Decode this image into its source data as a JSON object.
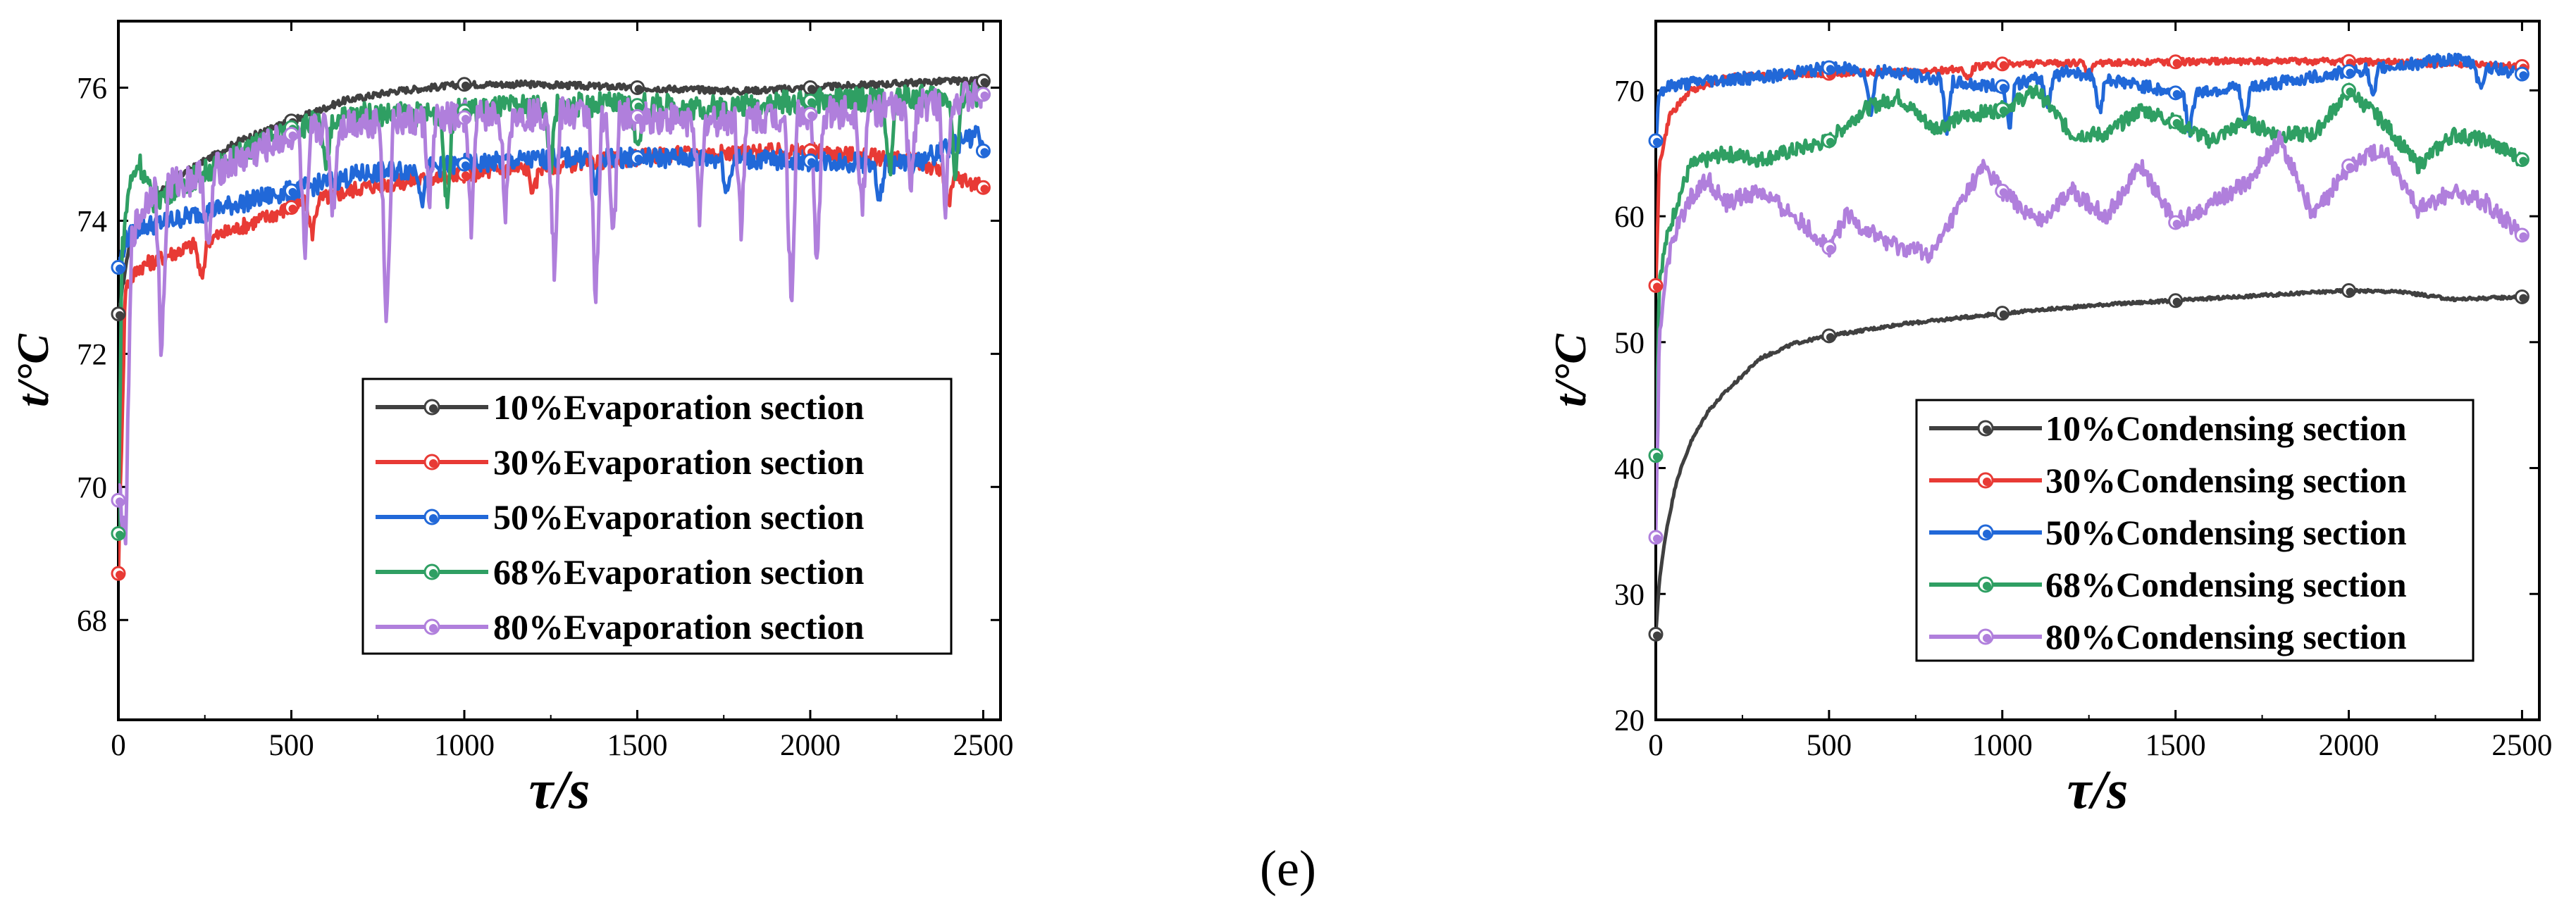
{
  "figure": {
    "caption": "(e)"
  },
  "chart_data": [
    {
      "type": "line",
      "title": "",
      "xlabel": "τ/s",
      "ylabel": "t/°C",
      "xlim": [
        0,
        2550
      ],
      "ylim": [
        66.5,
        77
      ],
      "xticks": [
        0,
        500,
        1000,
        1500,
        2000,
        2500
      ],
      "yticks": [
        68,
        70,
        72,
        74,
        76
      ],
      "legend_position": "lower-right",
      "series": [
        {
          "name": "10%Evaporation section",
          "color": "#404040",
          "x": [
            0,
            30,
            80,
            150,
            250,
            350,
            500,
            650,
            800,
            1000,
            1200,
            1500,
            1800,
            2000,
            2200,
            2400,
            2500
          ],
          "y": [
            72.6,
            73.6,
            74.2,
            74.6,
            74.9,
            75.2,
            75.5,
            75.8,
            75.95,
            76.05,
            76.05,
            76.0,
            75.95,
            76.0,
            76.05,
            76.1,
            76.1
          ],
          "noise": 0.05,
          "spikes": []
        },
        {
          "name": "30%Evaporation section",
          "color": "#e83a35",
          "x": [
            0,
            20,
            60,
            150,
            300,
            500,
            700,
            1000,
            1300,
            1600,
            2000,
            2300,
            2500
          ],
          "y": [
            68.7,
            73.0,
            73.3,
            73.5,
            73.8,
            74.2,
            74.5,
            74.7,
            74.85,
            75.0,
            75.05,
            74.9,
            74.5
          ],
          "noise": 0.12,
          "spikes": [
            [
              240,
              -0.6
            ],
            [
              560,
              -0.5
            ],
            [
              1200,
              -0.4
            ],
            [
              2400,
              -0.5
            ]
          ]
        },
        {
          "name": "50%Evaporation section",
          "color": "#2168d8",
          "x": [
            0,
            20,
            60,
            150,
            300,
            500,
            700,
            1000,
            1300,
            1600,
            2000,
            2300,
            2480,
            2500
          ],
          "y": [
            73.3,
            73.7,
            73.9,
            74.0,
            74.2,
            74.45,
            74.7,
            74.85,
            74.95,
            74.95,
            74.9,
            74.85,
            75.3,
            75.05
          ],
          "noise": 0.15,
          "spikes": [
            [
              880,
              -0.5
            ],
            [
              1380,
              -0.5
            ],
            [
              1760,
              -0.5
            ],
            [
              2200,
              -0.6
            ]
          ]
        },
        {
          "name": "68%Evaporation section",
          "color": "#2f9f63",
          "x": [
            0,
            10,
            30,
            60,
            100,
            200,
            350,
            500,
            700,
            900,
            1100,
            1400,
            1700,
            2000,
            2300,
            2500
          ],
          "y": [
            69.3,
            73.5,
            74.5,
            74.9,
            74.3,
            74.6,
            75.0,
            75.4,
            75.6,
            75.6,
            75.7,
            75.75,
            75.7,
            75.8,
            75.85,
            75.9
          ],
          "noise": 0.18,
          "spikes": [
            [
              600,
              -0.8
            ],
            [
              950,
              -1.5
            ],
            [
              1250,
              -0.9
            ],
            [
              1500,
              -0.7
            ],
            [
              2230,
              -1.2
            ],
            [
              2420,
              -1.3
            ]
          ]
        },
        {
          "name": "80%Evaporation section",
          "color": "#b07fdc",
          "x": [
            0,
            10,
            40,
            100,
            200,
            350,
            500,
            700,
            900,
            1100,
            1400,
            1700,
            2000,
            2300,
            2500
          ],
          "y": [
            69.8,
            71.0,
            73.8,
            74.5,
            74.6,
            74.9,
            75.3,
            75.5,
            75.5,
            75.6,
            75.6,
            75.5,
            75.6,
            75.7,
            75.9
          ],
          "noise": 0.25,
          "spikes": [
            [
              20,
              -3.0
            ],
            [
              125,
              -2.6
            ],
            [
              260,
              -1.3
            ],
            [
              540,
              -2.0
            ],
            [
              620,
              -1.3
            ],
            [
              775,
              -3.2
            ],
            [
              900,
              -1.2
            ],
            [
              1020,
              -1.6
            ],
            [
              1120,
              -1.5
            ],
            [
              1260,
              -2.4
            ],
            [
              1380,
              -3.0
            ],
            [
              1430,
              -2.0
            ],
            [
              1680,
              -1.5
            ],
            [
              1800,
              -1.6
            ],
            [
              1945,
              -2.9
            ],
            [
              2020,
              -2.4
            ],
            [
              2150,
              -1.5
            ],
            [
              2290,
              -1.2
            ],
            [
              2390,
              -1.6
            ]
          ]
        }
      ]
    },
    {
      "type": "line",
      "title": "",
      "xlabel": "τ/s",
      "ylabel": "t/°C",
      "xlim": [
        0,
        2550
      ],
      "ylim": [
        20,
        75.5
      ],
      "xticks": [
        0,
        500,
        1000,
        1500,
        2000,
        2500
      ],
      "yticks": [
        20,
        30,
        40,
        50,
        60,
        70
      ],
      "legend_position": "lower-right",
      "series": [
        {
          "name": "10%Condensing section",
          "color": "#404040",
          "x": [
            0,
            10,
            30,
            60,
            100,
            150,
            200,
            300,
            400,
            500,
            700,
            1000,
            1300,
            1500,
            1800,
            2000,
            2150,
            2300,
            2500
          ],
          "y": [
            26.8,
            31,
            35,
            39,
            42,
            44.5,
            46,
            48.7,
            49.9,
            50.5,
            51.4,
            52.3,
            53,
            53.3,
            53.8,
            54.1,
            54.0,
            53.4,
            53.6
          ],
          "noise": 0.12,
          "spikes": []
        },
        {
          "name": "30%Condensing section",
          "color": "#e83a35",
          "x": [
            0,
            10,
            40,
            100,
            200,
            400,
            600,
            800,
            1000,
            1300,
            1600,
            2000,
            2300,
            2500
          ],
          "y": [
            54.5,
            64,
            68,
            70,
            71,
            71.3,
            71.4,
            71.5,
            72.1,
            72.2,
            72.3,
            72.3,
            72.1,
            71.9
          ],
          "noise": 0.25,
          "spikes": [
            [
              900,
              -1.0
            ],
            [
              1250,
              -1.2
            ]
          ]
        },
        {
          "name": "50%Condensing section",
          "color": "#2168d8",
          "x": [
            0,
            10,
            50,
            150,
            300,
            500,
            700,
            900,
            1000,
            1200,
            1500,
            1700,
            2000,
            2300,
            2500
          ],
          "y": [
            66,
            70,
            70.4,
            70.8,
            71,
            71.8,
            71.4,
            70.5,
            70.3,
            71.5,
            69.8,
            70.2,
            71.5,
            72.5,
            71.3
          ],
          "noise": 0.5,
          "spikes": [
            [
              620,
              -3.5
            ],
            [
              840,
              -4.0
            ],
            [
              1020,
              -3.5
            ],
            [
              1130,
              -2.5
            ],
            [
              1280,
              -3.0
            ],
            [
              1540,
              -3.5
            ],
            [
              1700,
              -3.0
            ],
            [
              2070,
              -2.5
            ],
            [
              2380,
              -2.0
            ]
          ]
        },
        {
          "name": "68%Condensing section",
          "color": "#2f9f63",
          "x": [
            0,
            10,
            30,
            60,
            100,
            200,
            300,
            500,
            600,
            700,
            800,
            900,
            1000,
            1100,
            1200,
            1300,
            1400,
            1500,
            1600,
            1700,
            1800,
            1900,
            2000,
            2100,
            2200,
            2300,
            2400,
            2500
          ],
          "y": [
            41,
            55,
            58,
            61,
            64,
            65,
            64.5,
            66,
            68.5,
            69.5,
            67,
            68,
            68.5,
            70,
            66.5,
            66.5,
            68.5,
            67.5,
            66,
            67.5,
            66.5,
            66.5,
            70,
            67.5,
            64,
            66.5,
            66,
            64.5
          ],
          "noise": 0.6,
          "spikes": []
        },
        {
          "name": "80%Condensing section",
          "color": "#b07fdc",
          "x": [
            0,
            10,
            30,
            60,
            100,
            150,
            200,
            300,
            400,
            500,
            550,
            600,
            700,
            800,
            900,
            950,
            1000,
            1100,
            1200,
            1300,
            1400,
            1500,
            1600,
            1700,
            1800,
            1900,
            2000,
            2100,
            2200,
            2300,
            2400,
            2500
          ],
          "y": [
            34.5,
            50,
            56,
            59,
            61.5,
            63,
            61,
            62,
            60,
            57.5,
            60,
            59,
            57.5,
            57,
            62,
            64,
            62,
            59.5,
            62,
            60,
            64,
            59.5,
            61,
            62.5,
            66,
            60,
            64,
            65.5,
            60.5,
            62,
            61,
            58.5
          ],
          "noise": 0.7,
          "spikes": []
        }
      ]
    }
  ]
}
